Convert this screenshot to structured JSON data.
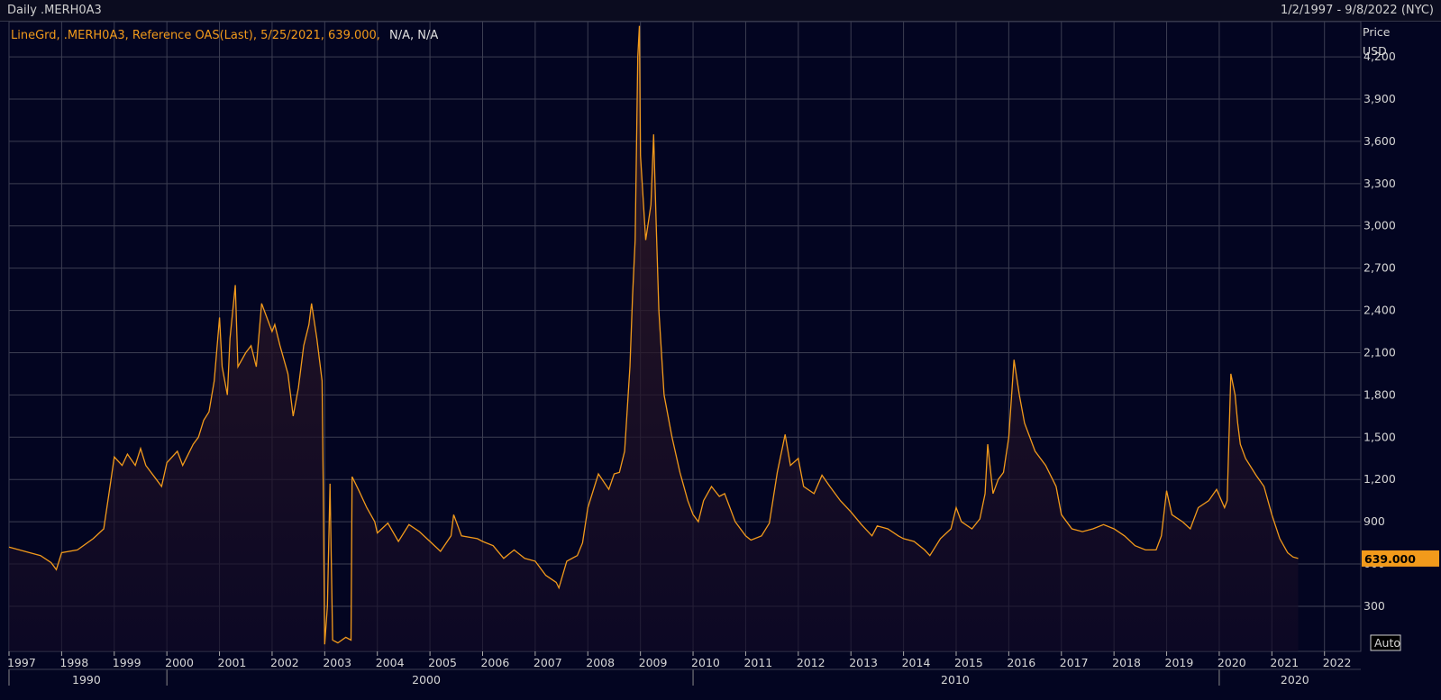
{
  "header": {
    "left_title": "Daily .MERH0A3",
    "right_title": "1/2/1997 - 9/8/2022 (NYC)"
  },
  "legend": {
    "text_orange": "LineGrd, .MERH0A3, Reference OAS(Last), 5/25/2021, 639.000,",
    "text_white": "N/A, N/A"
  },
  "axis": {
    "y_title": "Price",
    "y_unit": "USD",
    "auto_label": "Auto",
    "last_value_label": "639.000",
    "decade_labels": [
      "1990",
      "2000",
      "2010",
      "2020"
    ]
  },
  "colors": {
    "line": "#f29a1b",
    "background": "#030521",
    "grid": "#3c3e52",
    "last_value_box": "#f29a1b"
  },
  "chart_data": {
    "type": "line",
    "title": "Daily .MERH0A3",
    "ylabel": "Price USD",
    "y_ticks": [
      300,
      600,
      900,
      1200,
      1500,
      1800,
      2100,
      2400,
      2700,
      3000,
      3300,
      3600,
      3900,
      4200
    ],
    "x_ticks": [
      "1997",
      "1998",
      "1999",
      "2000",
      "2001",
      "2002",
      "2003",
      "2004",
      "2005",
      "2006",
      "2007",
      "2008",
      "2009",
      "2010",
      "2011",
      "2012",
      "2013",
      "2014",
      "2015",
      "2016",
      "2017",
      "2018",
      "2019",
      "2020",
      "2021",
      "2022"
    ],
    "xlim": [
      1997.0,
      2022.69
    ],
    "ylim": [
      -20,
      4450
    ],
    "series": [
      {
        "name": ".MERH0A3",
        "points": [
          [
            1997.0,
            720
          ],
          [
            1997.3,
            690
          ],
          [
            1997.6,
            660
          ],
          [
            1997.8,
            610
          ],
          [
            1997.9,
            560
          ],
          [
            1998.0,
            680
          ],
          [
            1998.3,
            700
          ],
          [
            1998.6,
            780
          ],
          [
            1998.8,
            850
          ],
          [
            1998.9,
            1100
          ],
          [
            1999.0,
            1360
          ],
          [
            1999.15,
            1300
          ],
          [
            1999.25,
            1380
          ],
          [
            1999.4,
            1300
          ],
          [
            1999.5,
            1420
          ],
          [
            1999.6,
            1300
          ],
          [
            1999.8,
            1200
          ],
          [
            1999.9,
            1150
          ],
          [
            2000.0,
            1320
          ],
          [
            2000.2,
            1400
          ],
          [
            2000.3,
            1300
          ],
          [
            2000.5,
            1450
          ],
          [
            2000.6,
            1500
          ],
          [
            2000.7,
            1620
          ],
          [
            2000.8,
            1680
          ],
          [
            2000.9,
            1900
          ],
          [
            2001.0,
            2350
          ],
          [
            2001.05,
            2000
          ],
          [
            2001.15,
            1800
          ],
          [
            2001.2,
            2200
          ],
          [
            2001.3,
            2580
          ],
          [
            2001.35,
            2000
          ],
          [
            2001.5,
            2100
          ],
          [
            2001.6,
            2150
          ],
          [
            2001.7,
            2000
          ],
          [
            2001.8,
            2450
          ],
          [
            2001.9,
            2350
          ],
          [
            2002.0,
            2250
          ],
          [
            2002.05,
            2300
          ],
          [
            2002.15,
            2150
          ],
          [
            2002.3,
            1950
          ],
          [
            2002.4,
            1650
          ],
          [
            2002.5,
            1850
          ],
          [
            2002.6,
            2150
          ],
          [
            2002.7,
            2300
          ],
          [
            2002.75,
            2450
          ],
          [
            2002.85,
            2200
          ],
          [
            2002.95,
            1900
          ],
          [
            2002.97,
            1200
          ],
          [
            2003.0,
            30
          ],
          [
            2003.05,
            300
          ],
          [
            2003.1,
            1170
          ],
          [
            2003.15,
            60
          ],
          [
            2003.25,
            40
          ],
          [
            2003.4,
            80
          ],
          [
            2003.5,
            60
          ],
          [
            2003.52,
            1220
          ],
          [
            2003.65,
            1120
          ],
          [
            2003.8,
            1000
          ],
          [
            2003.95,
            900
          ],
          [
            2004.0,
            820
          ],
          [
            2004.2,
            890
          ],
          [
            2004.4,
            760
          ],
          [
            2004.6,
            880
          ],
          [
            2004.8,
            830
          ],
          [
            2005.0,
            760
          ],
          [
            2005.2,
            690
          ],
          [
            2005.4,
            800
          ],
          [
            2005.45,
            950
          ],
          [
            2005.6,
            800
          ],
          [
            2005.9,
            780
          ],
          [
            2006.0,
            760
          ],
          [
            2006.2,
            730
          ],
          [
            2006.4,
            640
          ],
          [
            2006.6,
            700
          ],
          [
            2006.8,
            640
          ],
          [
            2007.0,
            620
          ],
          [
            2007.2,
            520
          ],
          [
            2007.4,
            470
          ],
          [
            2007.45,
            430
          ],
          [
            2007.6,
            620
          ],
          [
            2007.8,
            660
          ],
          [
            2007.9,
            750
          ],
          [
            2008.0,
            1000
          ],
          [
            2008.2,
            1240
          ],
          [
            2008.4,
            1130
          ],
          [
            2008.5,
            1240
          ],
          [
            2008.6,
            1250
          ],
          [
            2008.7,
            1400
          ],
          [
            2008.8,
            2000
          ],
          [
            2008.85,
            2500
          ],
          [
            2008.9,
            2900
          ],
          [
            2008.95,
            4200
          ],
          [
            2008.98,
            4420
          ],
          [
            2009.0,
            3500
          ],
          [
            2009.1,
            2900
          ],
          [
            2009.2,
            3150
          ],
          [
            2009.25,
            3650
          ],
          [
            2009.3,
            3000
          ],
          [
            2009.35,
            2400
          ],
          [
            2009.45,
            1800
          ],
          [
            2009.6,
            1500
          ],
          [
            2009.75,
            1250
          ],
          [
            2009.9,
            1050
          ],
          [
            2010.0,
            950
          ],
          [
            2010.1,
            900
          ],
          [
            2010.2,
            1050
          ],
          [
            2010.35,
            1150
          ],
          [
            2010.5,
            1080
          ],
          [
            2010.6,
            1100
          ],
          [
            2010.8,
            900
          ],
          [
            2011.0,
            800
          ],
          [
            2011.1,
            770
          ],
          [
            2011.3,
            800
          ],
          [
            2011.45,
            890
          ],
          [
            2011.6,
            1250
          ],
          [
            2011.75,
            1520
          ],
          [
            2011.85,
            1300
          ],
          [
            2012.0,
            1350
          ],
          [
            2012.1,
            1150
          ],
          [
            2012.3,
            1100
          ],
          [
            2012.45,
            1230
          ],
          [
            2012.6,
            1150
          ],
          [
            2012.8,
            1050
          ],
          [
            2013.0,
            970
          ],
          [
            2013.2,
            880
          ],
          [
            2013.4,
            800
          ],
          [
            2013.5,
            870
          ],
          [
            2013.7,
            850
          ],
          [
            2013.9,
            800
          ],
          [
            2014.0,
            780
          ],
          [
            2014.2,
            760
          ],
          [
            2014.4,
            700
          ],
          [
            2014.5,
            660
          ],
          [
            2014.7,
            780
          ],
          [
            2014.9,
            850
          ],
          [
            2015.0,
            1000
          ],
          [
            2015.1,
            900
          ],
          [
            2015.3,
            850
          ],
          [
            2015.45,
            920
          ],
          [
            2015.55,
            1100
          ],
          [
            2015.6,
            1450
          ],
          [
            2015.7,
            1100
          ],
          [
            2015.8,
            1200
          ],
          [
            2015.9,
            1250
          ],
          [
            2016.0,
            1500
          ],
          [
            2016.1,
            2050
          ],
          [
            2016.2,
            1800
          ],
          [
            2016.3,
            1600
          ],
          [
            2016.5,
            1400
          ],
          [
            2016.7,
            1300
          ],
          [
            2016.9,
            1150
          ],
          [
            2017.0,
            950
          ],
          [
            2017.2,
            850
          ],
          [
            2017.4,
            830
          ],
          [
            2017.6,
            850
          ],
          [
            2017.8,
            880
          ],
          [
            2018.0,
            850
          ],
          [
            2018.2,
            800
          ],
          [
            2018.4,
            730
          ],
          [
            2018.6,
            700
          ],
          [
            2018.8,
            700
          ],
          [
            2018.9,
            800
          ],
          [
            2019.0,
            1120
          ],
          [
            2019.1,
            950
          ],
          [
            2019.3,
            900
          ],
          [
            2019.45,
            850
          ],
          [
            2019.6,
            1000
          ],
          [
            2019.8,
            1050
          ],
          [
            2019.95,
            1130
          ],
          [
            2020.1,
            1000
          ],
          [
            2020.15,
            1050
          ],
          [
            2020.22,
            1950
          ],
          [
            2020.3,
            1800
          ],
          [
            2020.35,
            1600
          ],
          [
            2020.4,
            1450
          ],
          [
            2020.5,
            1350
          ],
          [
            2020.7,
            1230
          ],
          [
            2020.85,
            1150
          ],
          [
            2021.0,
            950
          ],
          [
            2021.15,
            780
          ],
          [
            2021.3,
            680
          ],
          [
            2021.4,
            650
          ],
          [
            2021.5,
            639
          ]
        ]
      }
    ],
    "last_value": 639.0,
    "grid": true
  }
}
